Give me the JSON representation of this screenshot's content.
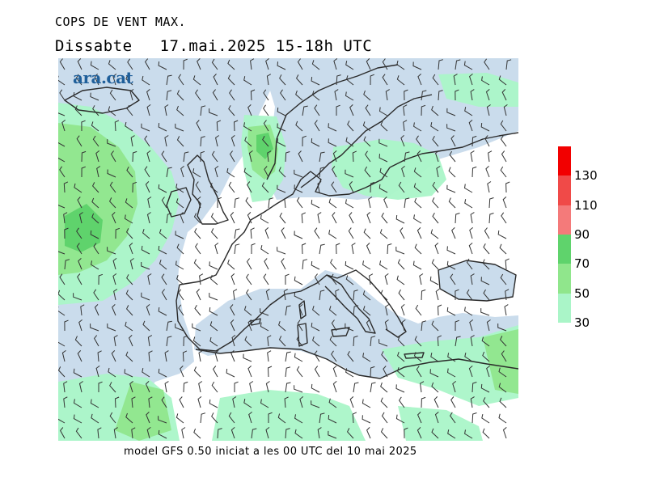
{
  "header": {
    "title": "COPS DE VENT MAX.",
    "day": "Dissabte",
    "date_range": "17.mai.2025 15-18h UTC"
  },
  "brand": {
    "logo_text": "ara.cat",
    "color": "#1f5f9a"
  },
  "footer": {
    "model_text": "model GFS 0.50 iniciat a les 00 UTC del 10 mai 2025"
  },
  "legend": {
    "bins": [
      {
        "min": 30,
        "max": 50,
        "color": "#aaf5c8"
      },
      {
        "min": 50,
        "max": 70,
        "color": "#90e68c"
      },
      {
        "min": 70,
        "max": 90,
        "color": "#5fd36c"
      },
      {
        "min": 90,
        "max": 110,
        "color": "#f47a7a"
      },
      {
        "min": 110,
        "max": 130,
        "color": "#f04a48"
      },
      {
        "min": 130,
        "max": 150,
        "color": "#f20000"
      }
    ],
    "labels": [
      "30",
      "50",
      "70",
      "90",
      "110",
      "130"
    ]
  },
  "map_colors": {
    "sea": "#cadcec",
    "land": "#ffffff",
    "gust_30_50": "#aaf5c8",
    "gust_50_70": "#90e68c",
    "gust_70_90": "#5fd36c",
    "coast": "#2a2a2a",
    "barb": "#333333"
  }
}
